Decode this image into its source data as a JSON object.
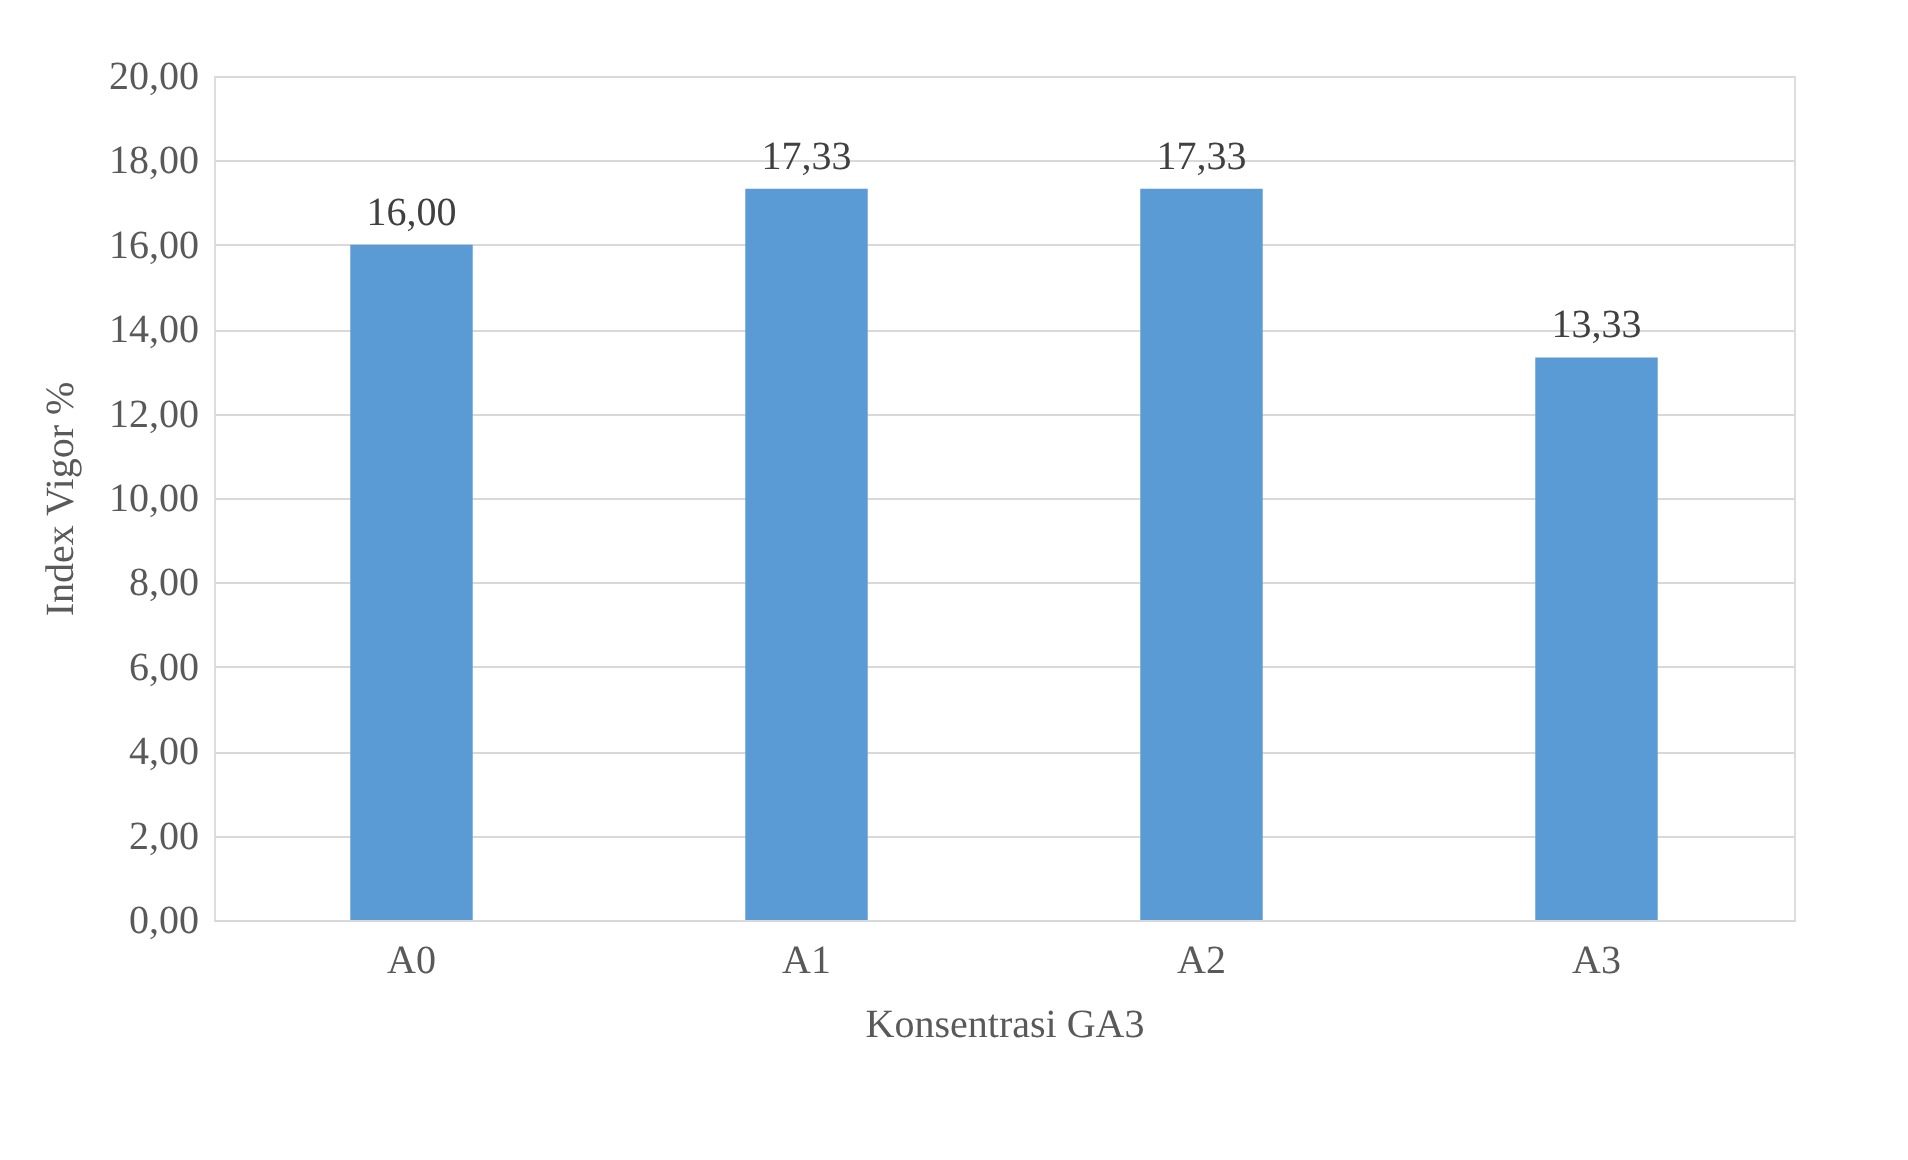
{
  "chart_data": {
    "type": "bar",
    "xlabel": "Konsentrasi GA3",
    "ylabel": "Index Vigor %",
    "categories": [
      "A0",
      "A1",
      "A2",
      "A3"
    ],
    "values": [
      16.0,
      17.33,
      17.33,
      13.33
    ],
    "value_labels": [
      "16,00",
      "17,33",
      "17,33",
      "13,33"
    ],
    "color": "#5b9bd5",
    "ylim": [
      0,
      20
    ],
    "yticks": [
      {
        "value": 0,
        "label": "0,00"
      },
      {
        "value": 2,
        "label": "2,00"
      },
      {
        "value": 4,
        "label": "4,00"
      },
      {
        "value": 6,
        "label": "6,00"
      },
      {
        "value": 8,
        "label": "8,00"
      },
      {
        "value": 10,
        "label": "10,00"
      },
      {
        "value": 12,
        "label": "12,00"
      },
      {
        "value": 14,
        "label": "14,00"
      },
      {
        "value": 16,
        "label": "16,00"
      },
      {
        "value": 18,
        "label": "18,00"
      },
      {
        "value": 20,
        "label": "20,00"
      }
    ],
    "grid": "y"
  }
}
